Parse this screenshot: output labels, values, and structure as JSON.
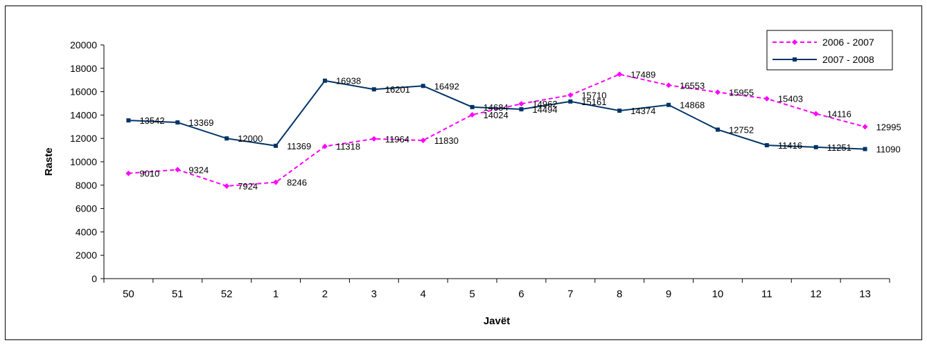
{
  "chart_data": {
    "type": "line",
    "title": "",
    "xlabel": "Javët",
    "ylabel": "Raste",
    "categories": [
      "50",
      "51",
      "52",
      "1",
      "2",
      "3",
      "4",
      "5",
      "6",
      "7",
      "8",
      "9",
      "10",
      "11",
      "12",
      "13"
    ],
    "ylim": [
      0,
      20000
    ],
    "yticks": [
      0,
      2000,
      4000,
      6000,
      8000,
      10000,
      12000,
      14000,
      16000,
      18000,
      20000
    ],
    "grid": false,
    "legend_position": "top-right",
    "series": [
      {
        "name": "2006 - 2007",
        "color": "#ff00ff",
        "style": "dashed",
        "marker": "diamond",
        "values": [
          9010,
          9324,
          7924,
          8246,
          11318,
          11964,
          11830,
          14024,
          14962,
          15710,
          17489,
          16553,
          15955,
          15403,
          14116,
          12995
        ]
      },
      {
        "name": "2007 - 2008",
        "color": "#003366",
        "style": "solid",
        "marker": "square",
        "values": [
          13542,
          13369,
          12000,
          11369,
          16938,
          16201,
          16492,
          14684,
          14494,
          15161,
          14374,
          14868,
          12752,
          11416,
          11251,
          11090
        ]
      }
    ]
  }
}
